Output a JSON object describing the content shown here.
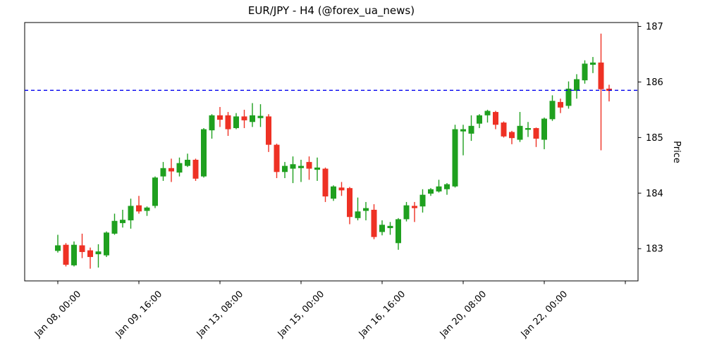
{
  "figure": {
    "title": "EUR/JPY - H4 (@forex_ua_news)"
  },
  "chart_data": {
    "type": "candlestick",
    "title": "EUR/JPY - H4 (@forex_ua_news)",
    "ylabel": "Price",
    "ylabel_side": "right",
    "ylim": [
      182.42,
      187.07
    ],
    "yticks": [
      183,
      184,
      185,
      186,
      187
    ],
    "grid": false,
    "legend": null,
    "up_color": "#1fa01f",
    "down_color": "#ee3124",
    "hline": {
      "price": 185.85,
      "color": "#0000ee",
      "style": "dashed",
      "label": "current-price-level"
    },
    "xticks": [
      {
        "i": 0,
        "label": "Jan 08, 00:00"
      },
      {
        "i": 10,
        "label": "Jan 09, 16:00"
      },
      {
        "i": 20,
        "label": "Jan 13, 08:00"
      },
      {
        "i": 30,
        "label": "Jan 15, 00:00"
      },
      {
        "i": 40,
        "label": "Jan 16, 16:00"
      },
      {
        "i": 50,
        "label": "Jan 20, 08:00"
      },
      {
        "i": 60,
        "label": "Jan 22, 00:00"
      },
      {
        "i": 70,
        "label": ""
      }
    ],
    "candles": [
      [
        182.96,
        183.25,
        182.93,
        183.06
      ],
      [
        183.07,
        183.1,
        182.68,
        182.71
      ],
      [
        182.7,
        183.13,
        182.68,
        183.07
      ],
      [
        183.06,
        183.27,
        182.83,
        182.94
      ],
      [
        182.97,
        183.02,
        182.64,
        182.85
      ],
      [
        182.9,
        183.08,
        182.66,
        182.95
      ],
      [
        182.88,
        183.31,
        182.85,
        183.29
      ],
      [
        183.27,
        183.63,
        183.25,
        183.5
      ],
      [
        183.46,
        183.7,
        183.38,
        183.52
      ],
      [
        183.51,
        183.9,
        183.36,
        183.77
      ],
      [
        183.78,
        183.95,
        183.63,
        183.67
      ],
      [
        183.68,
        183.76,
        183.59,
        183.74
      ],
      [
        183.77,
        184.3,
        183.73,
        184.28
      ],
      [
        184.3,
        184.56,
        184.22,
        184.45
      ],
      [
        184.45,
        184.62,
        184.2,
        184.39
      ],
      [
        184.37,
        184.64,
        184.3,
        184.54
      ],
      [
        184.49,
        184.71,
        184.47,
        184.6
      ],
      [
        184.6,
        184.62,
        184.22,
        184.26
      ],
      [
        184.3,
        185.17,
        184.28,
        185.15
      ],
      [
        185.13,
        185.42,
        184.98,
        185.4
      ],
      [
        185.4,
        185.55,
        185.19,
        185.32
      ],
      [
        185.4,
        185.46,
        185.03,
        185.15
      ],
      [
        185.17,
        185.44,
        185.15,
        185.38
      ],
      [
        185.38,
        185.5,
        185.17,
        185.31
      ],
      [
        185.28,
        185.62,
        185.19,
        185.4
      ],
      [
        185.35,
        185.6,
        185.19,
        185.39
      ],
      [
        185.38,
        185.42,
        184.74,
        184.87
      ],
      [
        184.87,
        184.89,
        184.27,
        184.38
      ],
      [
        184.38,
        184.56,
        184.27,
        184.49
      ],
      [
        184.44,
        184.66,
        184.18,
        184.52
      ],
      [
        184.45,
        184.6,
        184.2,
        184.49
      ],
      [
        184.56,
        184.66,
        184.24,
        184.44
      ],
      [
        184.42,
        184.64,
        184.22,
        184.46
      ],
      [
        184.44,
        184.46,
        183.84,
        183.94
      ],
      [
        183.9,
        184.14,
        183.86,
        184.12
      ],
      [
        184.1,
        184.2,
        183.95,
        184.05
      ],
      [
        184.09,
        184.11,
        183.44,
        183.57
      ],
      [
        183.55,
        183.92,
        183.51,
        183.67
      ],
      [
        183.68,
        183.84,
        183.51,
        183.73
      ],
      [
        183.7,
        183.8,
        183.17,
        183.21
      ],
      [
        183.3,
        183.51,
        183.24,
        183.43
      ],
      [
        183.37,
        183.48,
        183.25,
        183.41
      ],
      [
        183.1,
        183.55,
        182.98,
        183.53
      ],
      [
        183.53,
        183.84,
        183.49,
        183.78
      ],
      [
        183.77,
        183.84,
        183.48,
        183.73
      ],
      [
        183.76,
        184.07,
        183.65,
        183.97
      ],
      [
        183.99,
        184.09,
        183.95,
        184.07
      ],
      [
        184.03,
        184.24,
        184.01,
        184.12
      ],
      [
        184.07,
        184.18,
        183.97,
        184.16
      ],
      [
        184.12,
        185.23,
        184.1,
        185.15
      ],
      [
        185.11,
        185.23,
        184.68,
        185.15
      ],
      [
        185.07,
        185.4,
        184.94,
        185.21
      ],
      [
        185.25,
        185.42,
        185.17,
        185.4
      ],
      [
        185.4,
        185.5,
        185.27,
        185.48
      ],
      [
        185.46,
        185.48,
        185.15,
        185.23
      ],
      [
        185.27,
        185.29,
        185.0,
        185.02
      ],
      [
        185.1,
        185.12,
        184.88,
        184.99
      ],
      [
        184.96,
        185.46,
        184.92,
        185.21
      ],
      [
        185.14,
        185.28,
        185.01,
        185.17
      ],
      [
        185.17,
        185.18,
        184.83,
        184.98
      ],
      [
        184.96,
        185.36,
        184.79,
        185.34
      ],
      [
        185.33,
        185.76,
        185.3,
        185.66
      ],
      [
        185.64,
        185.7,
        185.44,
        185.54
      ],
      [
        185.57,
        186.01,
        185.52,
        185.88
      ],
      [
        185.84,
        186.14,
        185.7,
        186.05
      ],
      [
        186.03,
        186.39,
        185.97,
        186.33
      ],
      [
        186.31,
        186.45,
        186.16,
        186.35
      ],
      [
        186.35,
        186.87,
        184.77,
        185.87
      ],
      [
        185.88,
        185.95,
        185.65,
        185.84
      ]
    ]
  }
}
